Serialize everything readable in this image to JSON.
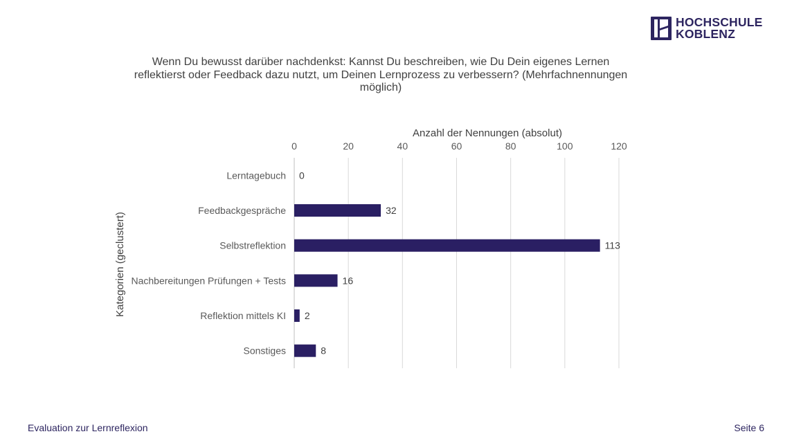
{
  "logo": {
    "line1": "HOCHSCHULE",
    "line2": "KOBLENZ",
    "color": "#2d2560"
  },
  "chart_data": {
    "type": "bar",
    "orientation": "horizontal",
    "title_lines": [
      "Wenn Du bewusst darüber nachdenkst: Kannst Du beschreiben, wie Du Dein eigenes Lernen",
      "reflektierst oder Feedback dazu nutzt, um Deinen Lernprozess zu verbessern? (Mehrfachnennungen",
      "möglich)"
    ],
    "xlabel": "Anzahl der Nennungen (absolut)",
    "ylabel": "Kategorien (geclustert)",
    "xlim": [
      0,
      120
    ],
    "xticks": [
      0,
      20,
      40,
      60,
      80,
      100,
      120
    ],
    "x_axis_position": "top",
    "grid": true,
    "categories": [
      "Lerntagebuch",
      "Feedbackgespräche",
      "Selbstreflektion",
      "Nachbereitungen Prüfungen + Tests",
      "Reflektion mittels KI",
      "Sonstiges"
    ],
    "values": [
      0,
      32,
      113,
      16,
      2,
      8
    ],
    "bar_color": "#2a1f63"
  },
  "footer": {
    "left": "Evaluation zur Lernreflexion",
    "right": "Seite 6"
  }
}
